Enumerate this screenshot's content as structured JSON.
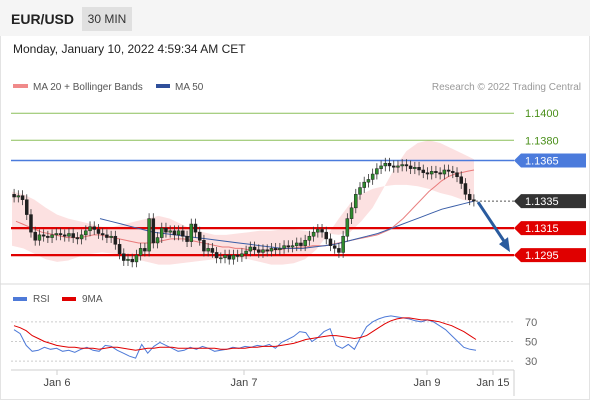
{
  "header": {
    "pair": "EUR/USD",
    "timeframe": "30 MIN",
    "datetime": "Monday, January 10, 2022 4:59:34 AM CET"
  },
  "legend": {
    "ma20": "MA 20 + Bollinger Bands",
    "ma50": "MA 50",
    "credit": "Research © 2022 Trading Central"
  },
  "colors": {
    "price_candle": "#2e8b2e",
    "ma20": "#e46060",
    "ma50": "#3a5ea8",
    "bollinger_fill": "#fcdede",
    "target": "#8bbf5a",
    "pivot": "#4b7bdc",
    "support": "#e00000",
    "last_price": "#333333",
    "arrow": "#2a5b9e",
    "rsi": "#4e7ad8",
    "rsi_ma": "#e00000"
  },
  "chart_data": [
    {
      "type": "candlestick",
      "x_axis": [
        "Jan 6",
        "Jan 7",
        "Jan 9",
        "Jan 15"
      ],
      "price_range": [
        1.1284,
        1.1412
      ],
      "levels": [
        {
          "label": "1.1400",
          "value": 1.14,
          "kind": "target"
        },
        {
          "label": "1.1380",
          "value": 1.138,
          "kind": "target"
        },
        {
          "label": "1.1365",
          "value": 1.1365,
          "kind": "pivot"
        },
        {
          "label": "1.1335",
          "value": 1.1335,
          "kind": "last"
        },
        {
          "label": "1.1315",
          "value": 1.1315,
          "kind": "support"
        },
        {
          "label": "1.1295",
          "value": 1.1295,
          "kind": "support"
        }
      ],
      "close": [
        1.1338,
        1.1339,
        1.1336,
        1.1325,
        1.1312,
        1.1306,
        1.131,
        1.1309,
        1.1308,
        1.131,
        1.1311,
        1.131,
        1.1309,
        1.1311,
        1.1308,
        1.1307,
        1.131,
        1.1313,
        1.1316,
        1.1314,
        1.1311,
        1.131,
        1.1308,
        1.1309,
        1.1303,
        1.1296,
        1.1291,
        1.1292,
        1.129,
        1.1295,
        1.13,
        1.1298,
        1.1322,
        1.1304,
        1.1308,
        1.1315,
        1.1312,
        1.1313,
        1.131,
        1.1313,
        1.1309,
        1.1305,
        1.1318,
        1.1312,
        1.1306,
        1.1298,
        1.13,
        1.1297,
        1.1293,
        1.1293,
        1.1295,
        1.1292,
        1.1295,
        1.1294,
        1.1296,
        1.1298,
        1.1301,
        1.1299,
        1.1297,
        1.1299,
        1.1298,
        1.13,
        1.1299,
        1.13,
        1.1302,
        1.1301,
        1.1302,
        1.1304,
        1.1302,
        1.1306,
        1.1309,
        1.1312,
        1.1314,
        1.1312,
        1.1307,
        1.1302,
        1.13,
        1.1297,
        1.1309,
        1.1322,
        1.133,
        1.134,
        1.1345,
        1.1349,
        1.1351,
        1.1355,
        1.1359,
        1.1361,
        1.1363,
        1.1361,
        1.136,
        1.1361,
        1.1362,
        1.1361,
        1.1359,
        1.136,
        1.1358,
        1.1356,
        1.1355,
        1.1357,
        1.1356,
        1.1355,
        1.1358,
        1.1357,
        1.1356,
        1.1353,
        1.1348,
        1.134,
        1.1336,
        1.1335
      ],
      "ma20": [
        1.132,
        1.1318,
        1.1316,
        1.1314,
        1.1312,
        1.1311,
        1.131,
        1.1309,
        1.1308,
        1.1308,
        1.1308,
        1.1309,
        1.131,
        1.131,
        1.1309,
        1.1308,
        1.1307,
        1.1306,
        1.1305,
        1.1304,
        1.1304,
        1.1304,
        1.1305,
        1.1306,
        1.1307,
        1.1307,
        1.1307,
        1.1306,
        1.1305,
        1.1304,
        1.1303,
        1.1302,
        1.1301,
        1.1301,
        1.13,
        1.13,
        1.1299,
        1.1299,
        1.1298,
        1.1298,
        1.1299,
        1.1299,
        1.13,
        1.13,
        1.1301,
        1.1301,
        1.1302,
        1.1302,
        1.1302,
        1.1303,
        1.1304,
        1.1305,
        1.1306,
        1.1307,
        1.1308,
        1.1309,
        1.131,
        1.1312,
        1.1314,
        1.1318,
        1.1322,
        1.1327,
        1.1332,
        1.1337,
        1.1342,
        1.1346,
        1.135,
        1.1353,
        1.1355,
        1.1356,
        1.1357,
        1.1358
      ],
      "ma50": [
        1.1322,
        1.132,
        1.1318,
        1.1316,
        1.1314,
        1.1312,
        1.1311,
        1.131,
        1.1309,
        1.1308,
        1.1307,
        1.1306,
        1.1305,
        1.1304,
        1.1303,
        1.1302,
        1.1301,
        1.13,
        1.13,
        1.13,
        1.1301,
        1.1302,
        1.1303,
        1.1305,
        1.1307,
        1.1309,
        1.1311,
        1.1314,
        1.1317,
        1.132,
        1.1323,
        1.1326,
        1.1329,
        1.1331,
        1.1333,
        1.1335
      ],
      "bb_upper": [
        1.1342,
        1.134,
        1.1336,
        1.133,
        1.1325,
        1.1322,
        1.132,
        1.1318,
        1.1316,
        1.1316,
        1.1318,
        1.132,
        1.1322,
        1.1324,
        1.1322,
        1.1318,
        1.1314,
        1.1312,
        1.131,
        1.131,
        1.1311,
        1.1312,
        1.1313,
        1.1313,
        1.1314,
        1.1314,
        1.1313,
        1.1312,
        1.1311,
        1.131,
        1.1312,
        1.132,
        1.133,
        1.1345,
        1.136,
        1.1372,
        1.1378,
        1.138,
        1.1378,
        1.1374,
        1.137,
        1.1366
      ],
      "bb_lower": [
        1.1302,
        1.13,
        1.1296,
        1.1292,
        1.129,
        1.1291,
        1.1294,
        1.1296,
        1.1297,
        1.1296,
        1.1294,
        1.1292,
        1.129,
        1.1288,
        1.1288,
        1.1289,
        1.129,
        1.1291,
        1.1292,
        1.1293,
        1.1293,
        1.1292,
        1.129,
        1.1288,
        1.1288,
        1.1289,
        1.1292,
        1.1299,
        1.131,
        1.1322,
        1.1333,
        1.134,
        1.1344,
        1.1346,
        1.1347,
        1.1347,
        1.1346,
        1.1344,
        1.1341,
        1.1339,
        1.1336,
        1.1334
      ]
    },
    {
      "type": "line",
      "legend": [
        "RSI",
        "9MA"
      ],
      "y_ticks": [
        70,
        50,
        30
      ],
      "ylim": [
        25,
        80
      ],
      "rsi": [
        62,
        58,
        46,
        40,
        41,
        44,
        42,
        43,
        40,
        41,
        39,
        42,
        44,
        41,
        40,
        46,
        45,
        41,
        38,
        35,
        33,
        47,
        38,
        45,
        49,
        46,
        43,
        40,
        41,
        44,
        42,
        45,
        43,
        40,
        41,
        42,
        44,
        43,
        45,
        44,
        46,
        45,
        47,
        43,
        49,
        52,
        55,
        60,
        59,
        50,
        54,
        60,
        63,
        46,
        43,
        47,
        42,
        54,
        65,
        70,
        73,
        75,
        76,
        75,
        74,
        73,
        71,
        70,
        72,
        70,
        66,
        62,
        56,
        50,
        44,
        42,
        41
      ],
      "rsi_ma": [
        66,
        64,
        61,
        56,
        53,
        50,
        48,
        46,
        45,
        44,
        44,
        43,
        43,
        43,
        42,
        43,
        44,
        44,
        43,
        42,
        41,
        42,
        43,
        43,
        44,
        44,
        44,
        43,
        43,
        43,
        43,
        43,
        43,
        43,
        42,
        42,
        43,
        43,
        43,
        44,
        44,
        45,
        45,
        45,
        46,
        47,
        48,
        50,
        52,
        53,
        54,
        55,
        56,
        56,
        55,
        54,
        53,
        54,
        56,
        60,
        64,
        68,
        71,
        73,
        74,
        74,
        73,
        72,
        72,
        71,
        70,
        68,
        66,
        63,
        60,
        56,
        52
      ]
    }
  ]
}
